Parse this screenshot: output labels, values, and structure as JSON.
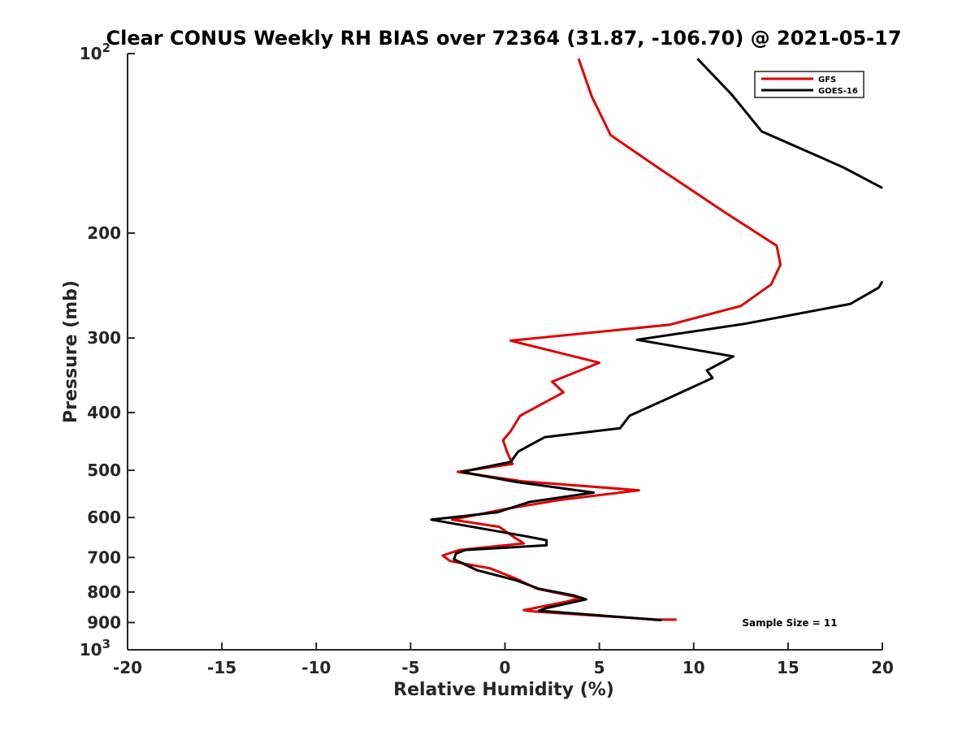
{
  "chart_data": {
    "type": "line",
    "title": "Clear CONUS Weekly RH BIAS over 72364 (31.87, -106.70) @ 2021-05-17",
    "xlabel": "Relative Humidity (%)",
    "ylabel": "Pressure (mb)",
    "xlim": [
      -20,
      20
    ],
    "ylim": [
      100,
      1000
    ],
    "y_scale": "log",
    "y_reversed": true,
    "x_ticks": [
      "-20",
      "-15",
      "-10",
      "-5",
      "0",
      "5",
      "10",
      "15",
      "20"
    ],
    "y_ticks": [
      {
        "value": 100,
        "label": "10",
        "sup": "2"
      },
      {
        "value": 200,
        "label": "200",
        "sup": ""
      },
      {
        "value": 300,
        "label": "300",
        "sup": ""
      },
      {
        "value": 400,
        "label": "400",
        "sup": ""
      },
      {
        "value": 500,
        "label": "500",
        "sup": ""
      },
      {
        "value": 600,
        "label": "600",
        "sup": ""
      },
      {
        "value": 700,
        "label": "700",
        "sup": ""
      },
      {
        "value": 800,
        "label": "800",
        "sup": ""
      },
      {
        "value": 900,
        "label": "900",
        "sup": ""
      },
      {
        "value": 1000,
        "label": "10",
        "sup": "3"
      }
    ],
    "legend_position": "top-right",
    "annotation": "Sample Size = 11",
    "series": [
      {
        "name": "GFS",
        "color": "#e00000",
        "points": [
          [
            9.1,
            890
          ],
          [
            8.1,
            890
          ],
          [
            1.6,
            863
          ],
          [
            1.0,
            858
          ],
          [
            3.3,
            830
          ],
          [
            4.0,
            818
          ],
          [
            1.7,
            790
          ],
          [
            0.6,
            760
          ],
          [
            -0.8,
            730
          ],
          [
            -2.9,
            710
          ],
          [
            -3.3,
            695
          ],
          [
            -2.4,
            680
          ],
          [
            1.0,
            663
          ],
          [
            0.4,
            645
          ],
          [
            -0.3,
            622
          ],
          [
            -2.8,
            605
          ],
          [
            0.1,
            580
          ],
          [
            3.0,
            560
          ],
          [
            7.1,
            540
          ],
          [
            1.0,
            522
          ],
          [
            -2.5,
            503
          ],
          [
            0.4,
            488
          ],
          [
            0.1,
            465
          ],
          [
            -0.1,
            445
          ],
          [
            0.3,
            430
          ],
          [
            0.8,
            405
          ],
          [
            3.1,
            370
          ],
          [
            2.5,
            355
          ],
          [
            5.0,
            330
          ],
          [
            0.3,
            303
          ],
          [
            8.7,
            285
          ],
          [
            12.5,
            265
          ],
          [
            14.1,
            244
          ],
          [
            14.6,
            226
          ],
          [
            14.4,
            210
          ],
          [
            11.7,
            185
          ],
          [
            8.2,
            156
          ],
          [
            5.6,
            137
          ],
          [
            4.6,
            118
          ],
          [
            3.9,
            102
          ]
        ]
      },
      {
        "name": "GOES-16",
        "color": "#000000",
        "points": [
          [
            8.3,
            892
          ],
          [
            1.8,
            860
          ],
          [
            2.2,
            851
          ],
          [
            4.3,
            823
          ],
          [
            3.6,
            810
          ],
          [
            1.8,
            790
          ],
          [
            0.6,
            765
          ],
          [
            -1.5,
            735
          ],
          [
            -2.7,
            705
          ],
          [
            -2.6,
            690
          ],
          [
            -2.1,
            680
          ],
          [
            2.2,
            668
          ],
          [
            2.2,
            655
          ],
          [
            1.1,
            645
          ],
          [
            -0.5,
            632
          ],
          [
            -3.9,
            605
          ],
          [
            -0.4,
            588
          ],
          [
            1.3,
            565
          ],
          [
            4.7,
            545
          ],
          [
            0.6,
            523
          ],
          [
            -2.3,
            503
          ],
          [
            0.3,
            484
          ],
          [
            0.7,
            465
          ],
          [
            2.1,
            440
          ],
          [
            6.1,
            425
          ],
          [
            6.6,
            405
          ],
          [
            8.7,
            378
          ],
          [
            11.0,
            350
          ],
          [
            10.7,
            340
          ],
          [
            12.1,
            322
          ],
          [
            7.0,
            302
          ],
          [
            12.7,
            284
          ],
          [
            18.3,
            263
          ],
          [
            19.8,
            247
          ],
          [
            20.0,
            241
          ],
          null,
          [
            20.0,
            168
          ],
          [
            17.9,
            155
          ],
          [
            13.6,
            135
          ],
          [
            12.0,
            117
          ],
          [
            10.2,
            102
          ]
        ]
      }
    ]
  }
}
